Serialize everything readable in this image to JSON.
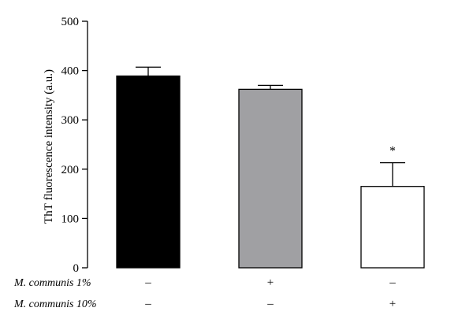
{
  "chart_data": {
    "type": "bar",
    "ylabel": "ThT fluorescence intensity (a.u.)",
    "ylim": [
      0,
      500
    ],
    "yticks": [
      0,
      100,
      200,
      300,
      400,
      500
    ],
    "grid": false,
    "bars": [
      {
        "value": 389,
        "error": 18,
        "color": "#000000",
        "significance": ""
      },
      {
        "value": 362,
        "error": 8,
        "color": "#a0a0a3",
        "significance": ""
      },
      {
        "value": 165,
        "error": 48,
        "color": "#ffffff",
        "significance": "*"
      }
    ],
    "conditions": [
      {
        "label": "M. communis 1%",
        "signs": [
          "–",
          "+",
          "–"
        ]
      },
      {
        "label": "M. communis 10%",
        "signs": [
          "–",
          "–",
          "+"
        ]
      }
    ]
  }
}
